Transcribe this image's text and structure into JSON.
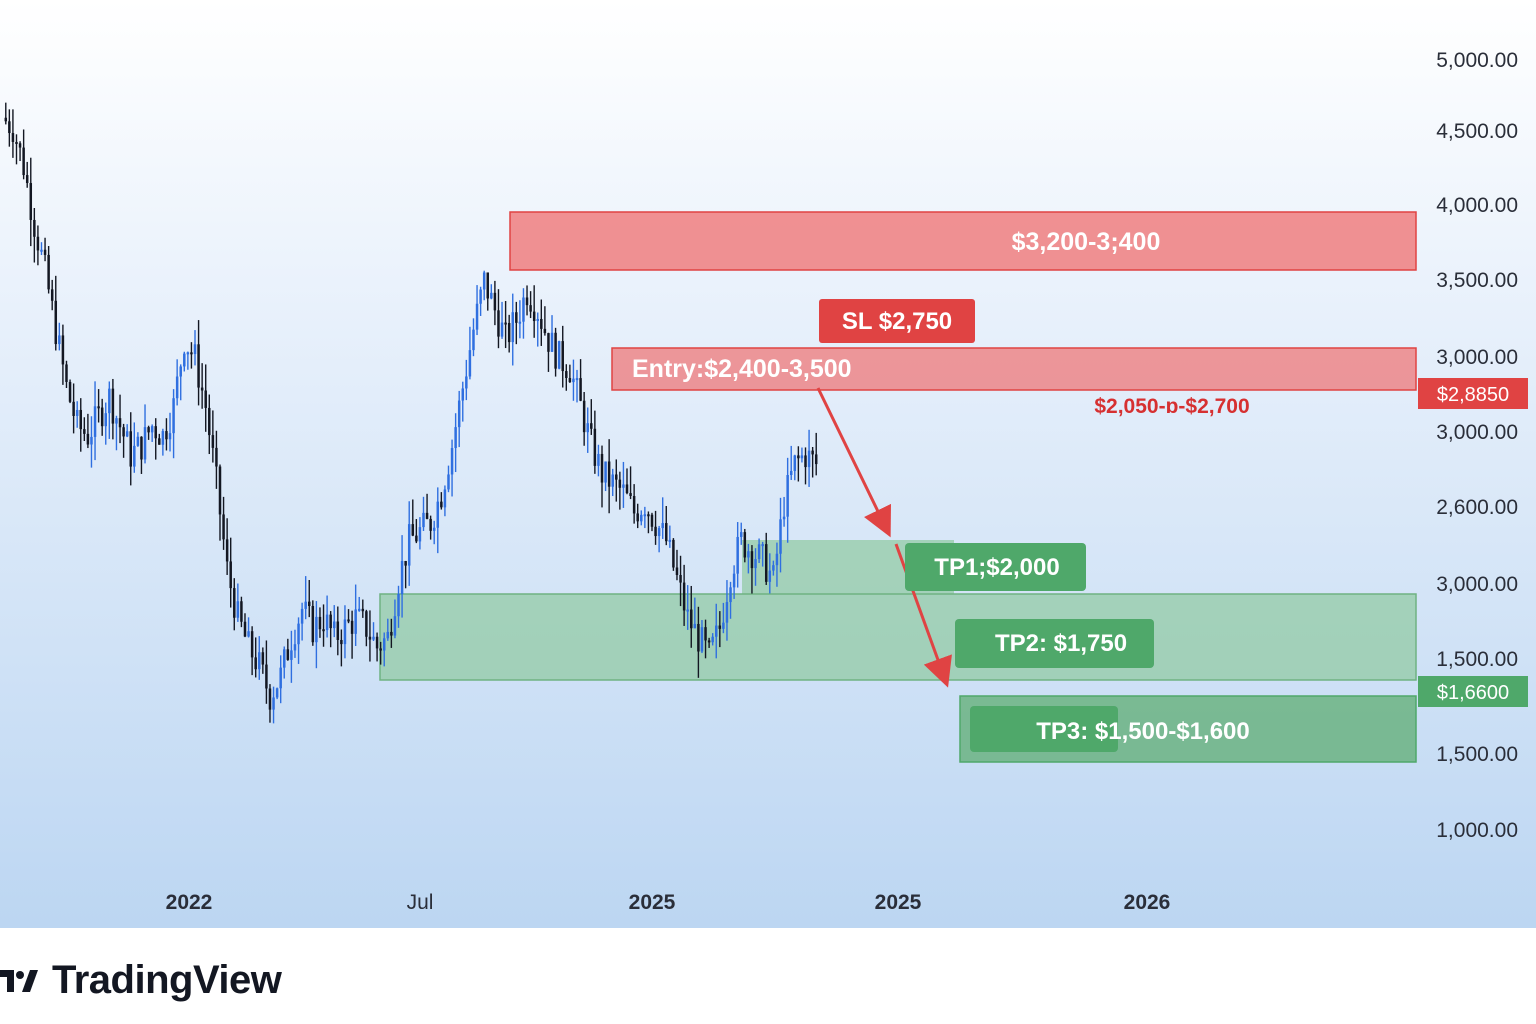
{
  "brand": {
    "name": "TradingView",
    "logo_icon": "tradingview-logo-icon"
  },
  "colors": {
    "bull": "#2f6fe0",
    "bear": "#131722",
    "zone_red": "#ef7373",
    "zone_green": "#8fc9a0",
    "label_red": "#e04343",
    "label_green": "#4fa86a",
    "arrow": "#e04343"
  },
  "chart_data": {
    "type": "candlestick",
    "title": "",
    "xlabel": "",
    "ylabel": "",
    "y_axis_labels": [
      "5,000.00",
      "4,500.00",
      "4,000.00",
      "3,500.00",
      "3,000.00",
      "3,000.00",
      "2,600.00",
      "3,000.00",
      "1,500.00",
      "1,500.00",
      "1,000.00"
    ],
    "x_axis_labels": [
      "2022",
      "Jul",
      "2025",
      "2025",
      "2026"
    ],
    "price_scale": {
      "min": 1000,
      "max": 5000,
      "scale": "linear"
    },
    "grid": false,
    "close_path": [
      4700,
      4650,
      4450,
      4150,
      3900,
      3600,
      3300,
      3100,
      3050,
      3150,
      3250,
      3100,
      2950,
      3000,
      3100,
      3050,
      3200,
      3550,
      3450,
      3200,
      2800,
      2350,
      2100,
      1950,
      1850,
      1700,
      1800,
      2000,
      2150,
      2050,
      2100,
      2000,
      2050,
      2100,
      2050,
      1950,
      2000,
      2300,
      2500,
      2550,
      2600,
      2750,
      3000,
      3300,
      3600,
      3850,
      3700,
      3550,
      3650,
      3800,
      3700,
      3550,
      3450,
      3400,
      3200,
      3000,
      2850,
      2800,
      2750,
      2650,
      2700,
      2600,
      2500,
      2300,
      2100,
      2000,
      1900,
      2050,
      2350,
      2500,
      2450,
      2400,
      2300,
      2700,
      2900,
      2950,
      2900
    ],
    "zones": [
      {
        "name": "resistance",
        "label": "$3,200-3;400",
        "top": 3850,
        "bottom": 3560
      },
      {
        "name": "entry",
        "label": "Entry:$2,400-3,500",
        "top": 3050,
        "bottom": 2820,
        "sub_label": "$2,050-ɒ-$2,700"
      },
      {
        "name": "tp1-zone",
        "top": 2270,
        "bottom": 1880
      },
      {
        "name": "support",
        "top": 1880,
        "bottom": 1470
      },
      {
        "name": "tp3-zone",
        "top": 1380,
        "bottom": 1050
      }
    ],
    "tags": [
      {
        "name": "sl-tag",
        "label": "SL $2,750",
        "color": "red"
      },
      {
        "name": "tp1-tag",
        "label": "TP1;$2,000",
        "color": "green"
      },
      {
        "name": "tp2-tag",
        "label": "TP2: $1,750",
        "color": "green"
      },
      {
        "name": "tp3-tag",
        "label": "TP3: $1,500-$1,600",
        "color": "green"
      }
    ],
    "price_badges": [
      {
        "name": "red-price-badge",
        "label": "$2,8850",
        "color": "red"
      },
      {
        "name": "green-price-badge",
        "label": "$1,6600",
        "color": "green"
      }
    ]
  }
}
